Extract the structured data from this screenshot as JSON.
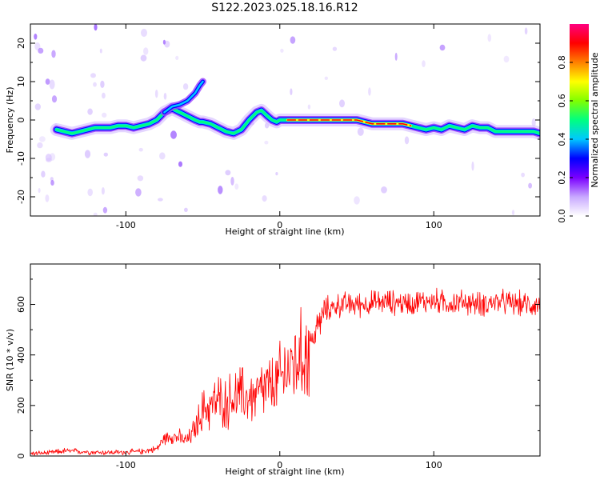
{
  "figure_title": "S122.2023.025.18.16.R12",
  "chart_data": [
    {
      "type": "heatmap",
      "title": "",
      "xlabel": "Height of straight line (km)",
      "ylabel": "Frequency (Hz)",
      "xlim": [
        -162,
        169
      ],
      "ylim": [
        -25,
        25
      ],
      "xticks": [
        -100,
        0,
        100
      ],
      "yticks": [
        -20,
        -10,
        0,
        10,
        20
      ],
      "grid": false,
      "colorbar": {
        "label": "Normalized spectral amplitude",
        "range": [
          0,
          1
        ],
        "ticks": [
          0.0,
          0.2,
          0.4,
          0.6,
          0.8
        ],
        "colormap": [
          "#ffffff",
          "#c8a8ff",
          "#7a00ff",
          "#0000ff",
          "#00c8ff",
          "#00ff80",
          "#80ff00",
          "#ffff00",
          "#ff8000",
          "#ff0000",
          "#ff0080"
        ]
      },
      "ridge": {
        "x": [
          -145,
          -140,
          -135,
          -130,
          -125,
          -120,
          -115,
          -110,
          -105,
          -100,
          -95,
          -90,
          -85,
          -80,
          -75,
          -70,
          -65,
          -60,
          -55,
          -52,
          -50,
          -45,
          -40,
          -35,
          -30,
          -25,
          -20,
          -15,
          -12,
          -8,
          -5,
          -2,
          0,
          5,
          10,
          20,
          30,
          40,
          50,
          60,
          70,
          80,
          85,
          90,
          95,
          100,
          105,
          110,
          115,
          120,
          125,
          130,
          135,
          140,
          145,
          150,
          155,
          160,
          165,
          169
        ],
        "y": [
          -2.5,
          -3,
          -3.5,
          -3,
          -2.5,
          -2,
          -2,
          -2,
          -1.5,
          -1.5,
          -2,
          -1.5,
          -1,
          0,
          2,
          3,
          2,
          1,
          0,
          -0.5,
          -0.5,
          -1,
          -2,
          -3,
          -3.5,
          -2.5,
          0,
          2,
          2.5,
          1,
          0,
          -0.5,
          0,
          0,
          0,
          0,
          0,
          0,
          0,
          -1,
          -1,
          -1,
          -1.5,
          -2,
          -2.5,
          -2,
          -2.5,
          -1.5,
          -2,
          -2.5,
          -1.5,
          -2,
          -2,
          -3,
          -3,
          -3,
          -3,
          -3,
          -3,
          -3.5
        ]
      },
      "branch": {
        "x": [
          -75,
          -70,
          -65,
          -60,
          -55,
          -52,
          -50
        ],
        "y": [
          2,
          3.5,
          4,
          5,
          7,
          9,
          10
        ]
      }
    },
    {
      "type": "line",
      "title": "",
      "xlabel": "Height of straight line (km)",
      "ylabel": "SNR (10 * v/v)",
      "xlim": [
        -162,
        169
      ],
      "ylim": [
        0,
        760
      ],
      "xticks": [
        -100,
        0,
        100
      ],
      "yticks": [
        0,
        200,
        400,
        600
      ],
      "grid": false,
      "series": [
        {
          "color": "#ff0000",
          "x": [
            -162,
            -150,
            -140,
            -130,
            -120,
            -110,
            -100,
            -90,
            -80,
            -75,
            -70,
            -65,
            -60,
            -55,
            -50,
            -45,
            -40,
            -35,
            -30,
            -25,
            -20,
            -15,
            -10,
            -5,
            0,
            5,
            10,
            15,
            20,
            25,
            30,
            40,
            50,
            60,
            70,
            80,
            90,
            100,
            110,
            120,
            130,
            140,
            150,
            160,
            169
          ],
          "y": [
            10,
            12,
            20,
            18,
            15,
            14,
            15,
            18,
            28,
            70,
            80,
            70,
            60,
            110,
            180,
            200,
            220,
            210,
            230,
            240,
            230,
            240,
            265,
            270,
            300,
            345,
            370,
            390,
            440,
            520,
            580,
            600,
            600,
            605,
            610,
            605,
            610,
            615,
            605,
            610,
            600,
            610,
            605,
            600,
            600
          ]
        }
      ]
    }
  ]
}
